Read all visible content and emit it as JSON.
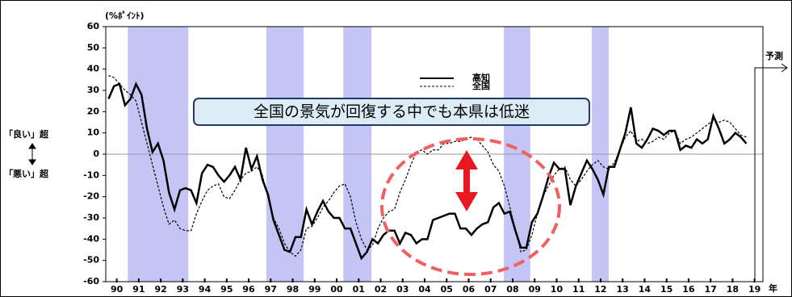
{
  "chart_data": {
    "type": "line",
    "y_unit_label": "(%ﾎﾟｲﾝﾄ)",
    "annotation": "全国の景気が回復する中でも本県は低迷",
    "good_label": "「良い」超",
    "bad_label": "「悪い」超",
    "forecast_label": "予測",
    "x_unit_label": "年",
    "x": [
      1990.125,
      1990.375,
      1990.625,
      1990.875,
      1991.125,
      1991.375,
      1991.625,
      1991.875,
      1992.125,
      1992.375,
      1992.625,
      1992.875,
      1993.125,
      1993.375,
      1993.625,
      1993.875,
      1994.125,
      1994.375,
      1994.625,
      1994.875,
      1995.125,
      1995.375,
      1995.625,
      1995.875,
      1996.125,
      1996.375,
      1996.625,
      1996.875,
      1997.125,
      1997.375,
      1997.625,
      1997.875,
      1998.125,
      1998.375,
      1998.625,
      1998.875,
      1999.125,
      1999.375,
      1999.625,
      1999.875,
      2000.125,
      2000.375,
      2000.625,
      2000.875,
      2001.125,
      2001.375,
      2001.625,
      2001.875,
      2002.125,
      2002.375,
      2002.625,
      2002.875,
      2003.125,
      2003.375,
      2003.625,
      2003.875,
      2004.125,
      2004.375,
      2004.625,
      2004.875,
      2005.125,
      2005.375,
      2005.625,
      2005.875,
      2006.125,
      2006.375,
      2006.625,
      2006.875,
      2007.125,
      2007.375,
      2007.625,
      2007.875,
      2008.125,
      2008.375,
      2008.625,
      2008.875,
      2009.125,
      2009.375,
      2009.625,
      2009.875,
      2010.125,
      2010.375,
      2010.625,
      2010.875,
      2011.125,
      2011.375,
      2011.625,
      2011.875,
      2012.125,
      2012.375,
      2012.625,
      2012.875,
      2013.125,
      2013.375,
      2013.625,
      2013.875,
      2014.125,
      2014.375,
      2014.625,
      2014.875,
      2015.125,
      2015.375,
      2015.625,
      2015.875,
      2016.125,
      2016.375,
      2016.625,
      2016.875,
      2017.125,
      2017.375,
      2017.625,
      2017.875,
      2018.125,
      2018.375,
      2018.625,
      2018.875,
      2019.125
    ],
    "series": [
      {
        "name": "高知",
        "color": "#000000",
        "dash": false,
        "values": [
          26,
          32,
          33,
          23,
          26,
          33,
          28,
          12,
          1,
          5,
          -3,
          -18,
          -26,
          -17,
          -16,
          -17,
          -23,
          -9,
          -5,
          -6,
          -10,
          -13,
          -10,
          -6,
          -12,
          3,
          -7,
          -1,
          -12,
          -19,
          -31,
          -38,
          -45,
          -46,
          -39,
          -39,
          -26,
          -33,
          -27,
          -22,
          -27,
          -30,
          -30,
          -35,
          -35,
          -42,
          -49,
          -46,
          -40,
          -42,
          -38,
          -36,
          -36,
          -42,
          -37,
          -38,
          -42,
          -40,
          -40,
          -31,
          -30,
          -29,
          -28,
          -28,
          -35,
          -35,
          -38,
          -35,
          -33,
          -32,
          -25,
          -23,
          -28,
          -27,
          -36,
          -44,
          -44,
          -32,
          -28,
          -20,
          -11,
          -4,
          -7,
          -7,
          -24,
          -15,
          -9,
          -3,
          -7,
          -12,
          -19,
          -6,
          -6,
          2,
          10,
          22,
          5,
          3,
          7,
          12,
          11,
          9,
          11,
          11,
          2,
          4,
          3,
          7,
          5,
          7,
          18,
          12,
          5,
          7,
          10,
          8,
          5
        ]
      },
      {
        "name": "全国",
        "color": "#000000",
        "dash": true,
        "values": [
          37,
          36,
          33,
          30,
          28,
          25,
          15,
          5,
          -5,
          -15,
          -25,
          -33,
          -31,
          -35,
          -36,
          -36,
          -28,
          -22,
          -17,
          -15,
          -14,
          -20,
          -21,
          -17,
          -12,
          -9,
          -8,
          -6,
          -10,
          -20,
          -30,
          -35,
          -42,
          -46,
          -48,
          -45,
          -35,
          -34,
          -30,
          -25,
          -22,
          -18,
          -15,
          -14,
          -20,
          -32,
          -40,
          -45,
          -43,
          -35,
          -30,
          -27,
          -26,
          -18,
          -12,
          -5,
          1,
          2,
          0,
          2,
          2,
          5,
          5,
          6,
          6,
          7,
          8,
          7,
          4,
          1,
          -5,
          -8,
          -15,
          -25,
          -36,
          -46,
          -45,
          -38,
          -28,
          -20,
          -15,
          -10,
          -7,
          -6,
          -12,
          -15,
          -12,
          -8,
          -5,
          -3,
          -6,
          -7,
          -4,
          2,
          8,
          11,
          6,
          7,
          5,
          6,
          8,
          7,
          10,
          11,
          5,
          7,
          8,
          10,
          12,
          14,
          16,
          15,
          16,
          15,
          12,
          9,
          8
        ]
      }
    ],
    "shaded_periods": [
      [
        1991.0,
        1993.75
      ],
      [
        1997.3,
        1999.0
      ],
      [
        2000.8,
        2002.08
      ],
      [
        2008.1,
        2009.3
      ],
      [
        2012.1,
        2012.87
      ]
    ],
    "shade_color": "#c5c5f5",
    "xlim": [
      1990,
      2019.88
    ],
    "xticks": [
      {
        "value": 1990.5,
        "label": "90"
      },
      {
        "value": 1991.5,
        "label": "91"
      },
      {
        "value": 1992.5,
        "label": "92"
      },
      {
        "value": 1993.5,
        "label": "93"
      },
      {
        "value": 1994.5,
        "label": "94"
      },
      {
        "value": 1995.5,
        "label": "95"
      },
      {
        "value": 1996.5,
        "label": "96"
      },
      {
        "value": 1997.5,
        "label": "97"
      },
      {
        "value": 1998.5,
        "label": "98"
      },
      {
        "value": 1999.5,
        "label": "99"
      },
      {
        "value": 2000.5,
        "label": "00"
      },
      {
        "value": 2001.5,
        "label": "01"
      },
      {
        "value": 2002.5,
        "label": "02"
      },
      {
        "value": 2003.5,
        "label": "03"
      },
      {
        "value": 2004.5,
        "label": "04"
      },
      {
        "value": 2005.5,
        "label": "05"
      },
      {
        "value": 2006.5,
        "label": "06"
      },
      {
        "value": 2007.5,
        "label": "07"
      },
      {
        "value": 2008.5,
        "label": "08"
      },
      {
        "value": 2009.5,
        "label": "09"
      },
      {
        "value": 2010.5,
        "label": "10"
      },
      {
        "value": 2011.5,
        "label": "11"
      },
      {
        "value": 2012.5,
        "label": "12"
      },
      {
        "value": 2013.5,
        "label": "13"
      },
      {
        "value": 2014.5,
        "label": "14"
      },
      {
        "value": 2015.5,
        "label": "15"
      },
      {
        "value": 2016.5,
        "label": "16"
      },
      {
        "value": 2017.5,
        "label": "17"
      },
      {
        "value": 2018.5,
        "label": "18"
      },
      {
        "value": 2019.5,
        "label": "19"
      }
    ],
    "ylim": [
      -60,
      60
    ],
    "yticks": [
      -60,
      -50,
      -40,
      -30,
      -20,
      -10,
      0,
      10,
      20,
      30,
      40,
      50,
      60
    ],
    "grid": false
  }
}
